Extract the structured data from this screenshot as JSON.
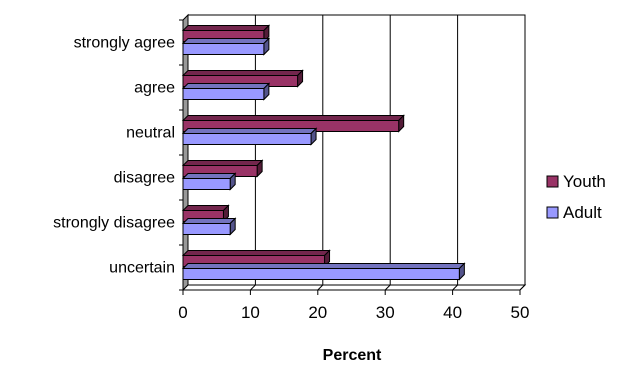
{
  "chart_data": {
    "type": "bar",
    "orientation": "horizontal",
    "style": "3d",
    "categories": [
      "strongly agree",
      "agree",
      "neutral",
      "disagree",
      "strongly disagree",
      "uncertain"
    ],
    "series": [
      {
        "name": "Youth",
        "values": [
          12,
          17,
          32,
          11,
          6,
          21
        ],
        "color": "#993366"
      },
      {
        "name": "Adult",
        "values": [
          12,
          12,
          19,
          7,
          7,
          41
        ],
        "color": "#9999ff"
      }
    ],
    "xlabel": "Percent",
    "xlim": [
      0,
      50
    ],
    "xticks": [
      0,
      10,
      20,
      30,
      40,
      50
    ],
    "grid": true,
    "legend_position": "right"
  }
}
